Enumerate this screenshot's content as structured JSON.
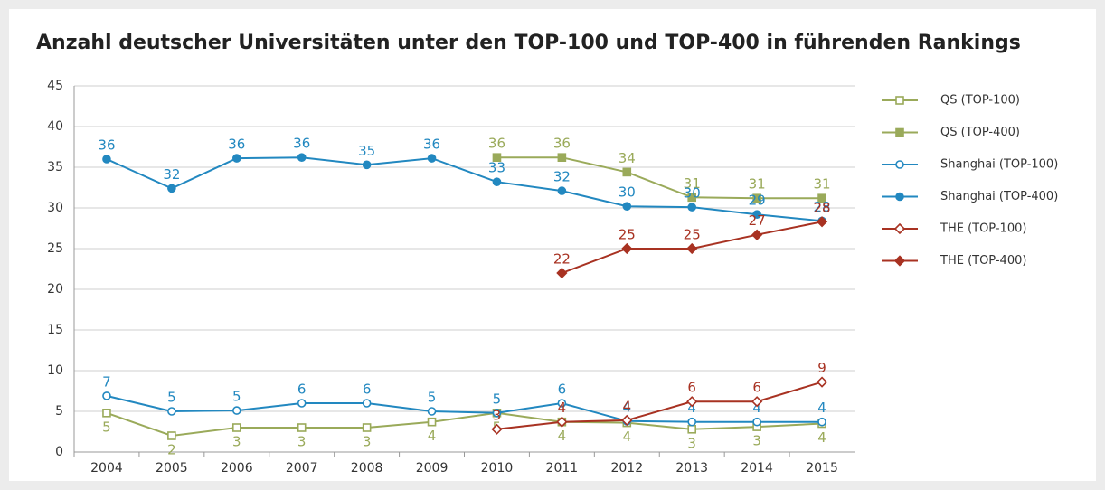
{
  "chart_data": {
    "type": "line",
    "title": "Anzahl deutscher Universitäten unter den TOP-100 und TOP-400 in führenden Rankings",
    "categories": [
      "2004",
      "2005",
      "2006",
      "2007",
      "2008",
      "2009",
      "2010",
      "2011",
      "2012",
      "2013",
      "2014",
      "2015"
    ],
    "ylim": [
      0,
      45
    ],
    "yticks": [
      0,
      5,
      10,
      15,
      20,
      25,
      30,
      35,
      40,
      45
    ],
    "grid": true,
    "legend": "right",
    "series": [
      {
        "name": "QS (TOP-100)",
        "color": "#9aaa5a",
        "marker": "square",
        "filled": false,
        "values": [
          4.8,
          2,
          3,
          3,
          3,
          3.7,
          4.8,
          3.7,
          3.6,
          2.8,
          3.1,
          3.5
        ],
        "value_labels": [
          "5",
          "2",
          "3",
          "3",
          "3",
          "4",
          "5",
          "4",
          "4",
          "3",
          "3",
          "4"
        ]
      },
      {
        "name": "QS (TOP-400)",
        "color": "#9aaa5a",
        "marker": "square",
        "filled": true,
        "values": [
          null,
          null,
          null,
          null,
          null,
          null,
          36.2,
          36.2,
          34.4,
          31.3,
          31.2,
          31.2
        ],
        "value_labels": [
          null,
          null,
          null,
          null,
          null,
          null,
          "36",
          "36",
          "34",
          "31",
          "31",
          "31"
        ]
      },
      {
        "name": "Shanghai (TOP-100)",
        "color": "#2288c0",
        "marker": "circle",
        "filled": false,
        "values": [
          6.9,
          5,
          5.1,
          6,
          6,
          5,
          4.8,
          6,
          3.8,
          3.7,
          3.7,
          3.7
        ],
        "value_labels": [
          "7",
          "5",
          "5",
          "6",
          "6",
          "5",
          "5",
          "6",
          "4",
          "4",
          "4",
          "4"
        ]
      },
      {
        "name": "Shanghai (TOP-400)",
        "color": "#2288c0",
        "marker": "circle",
        "filled": true,
        "values": [
          36,
          32.4,
          36.1,
          36.2,
          35.3,
          36.1,
          33.2,
          32.1,
          30.2,
          30.1,
          29.2,
          28.4
        ],
        "value_labels": [
          "36",
          "32",
          "36",
          "36",
          "35",
          "36",
          "33",
          "32",
          "30",
          "30",
          "29",
          "28"
        ]
      },
      {
        "name": "THE (TOP-100)",
        "color": "#a83222",
        "marker": "diamond",
        "filled": false,
        "values": [
          null,
          null,
          null,
          null,
          null,
          null,
          2.8,
          3.7,
          3.9,
          6.2,
          6.2,
          8.6
        ],
        "value_labels": [
          null,
          null,
          null,
          null,
          null,
          null,
          "3",
          "4",
          "4",
          "6",
          "6",
          "9"
        ]
      },
      {
        "name": "THE (TOP-400)",
        "color": "#a83222",
        "marker": "diamond",
        "filled": true,
        "values": [
          null,
          null,
          null,
          null,
          null,
          null,
          null,
          22,
          25,
          25,
          26.7,
          28.3
        ],
        "value_labels": [
          null,
          null,
          null,
          null,
          null,
          null,
          null,
          "22",
          "25",
          "25",
          "27",
          "28"
        ]
      }
    ]
  }
}
